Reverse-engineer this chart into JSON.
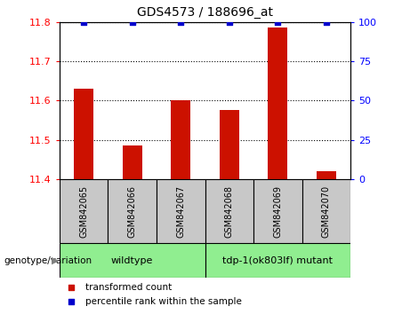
{
  "title": "GDS4573 / 188696_at",
  "samples": [
    "GSM842065",
    "GSM842066",
    "GSM842067",
    "GSM842068",
    "GSM842069",
    "GSM842070"
  ],
  "bar_values": [
    11.63,
    11.485,
    11.6,
    11.575,
    11.785,
    11.42
  ],
  "percentile_values": [
    100,
    100,
    100,
    100,
    100,
    100
  ],
  "bar_base": 11.4,
  "ylim_left": [
    11.4,
    11.8
  ],
  "ylim_right": [
    0,
    100
  ],
  "yticks_left": [
    11.4,
    11.5,
    11.6,
    11.7,
    11.8
  ],
  "yticks_right": [
    0,
    25,
    50,
    75,
    100
  ],
  "bar_color": "#cc1100",
  "dot_color": "#0000cc",
  "group_box_color": "#c8c8c8",
  "wildtype_color": "#90EE90",
  "mutant_color": "#90EE90",
  "legend_items": [
    {
      "color": "#cc1100",
      "label": "transformed count"
    },
    {
      "color": "#0000cc",
      "label": "percentile rank within the sample"
    }
  ],
  "fig_bg": "#ffffff",
  "bar_width": 0.4
}
